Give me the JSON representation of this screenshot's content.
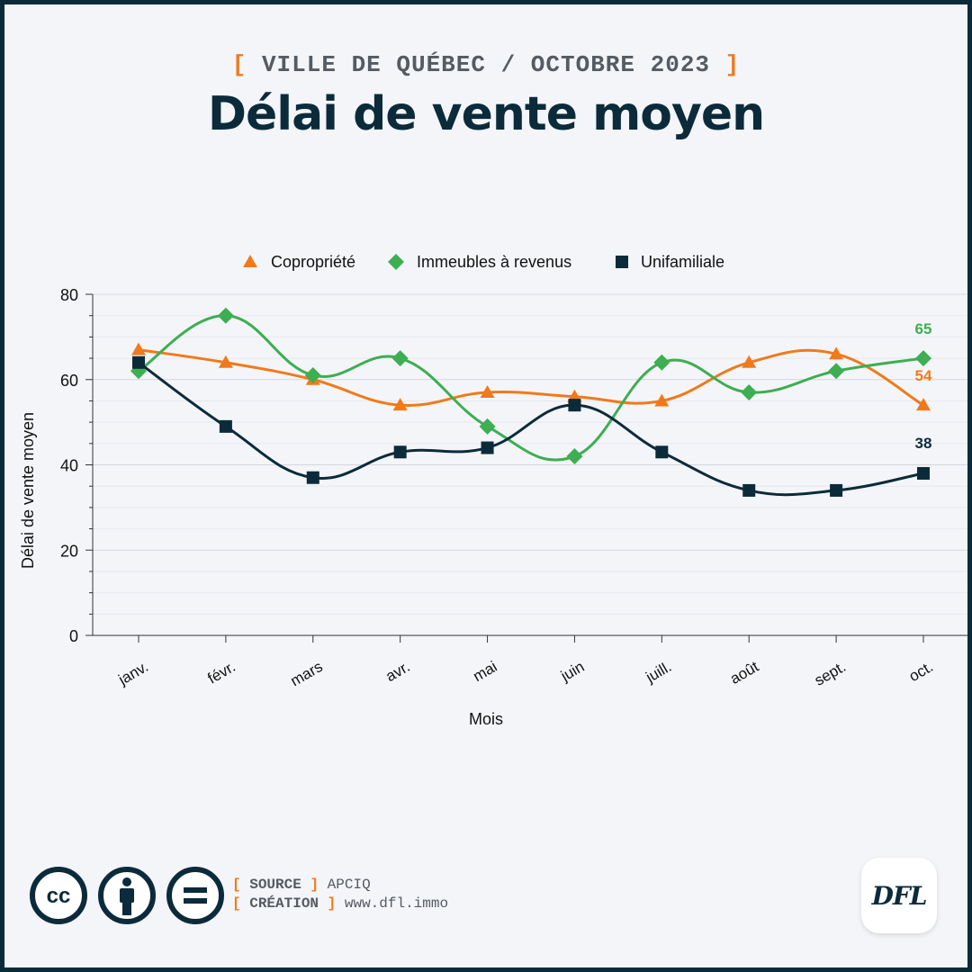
{
  "header": {
    "kicker": "VILLE DE QUÉBEC / OCTOBRE 2023",
    "title": "Délai de vente moyen"
  },
  "footer": {
    "source_label": "SOURCE",
    "source_value": "APCIQ",
    "creation_label": "CRÉATION",
    "creation_value": "www.dfl.immo",
    "logo_text": "DFL",
    "license_icons": [
      "cc-icon",
      "attribution-icon",
      "no-derivatives-icon"
    ],
    "cc_text": "cc",
    "nd_text": "="
  },
  "colors": {
    "navy": "#0b2b3b",
    "orange": "#f07a1a",
    "green": "#3dae52"
  },
  "chart_data": {
    "type": "line",
    "categories": [
      "janv.",
      "févr.",
      "mars",
      "avr.",
      "mai",
      "juin",
      "juill.",
      "août",
      "sept.",
      "oct."
    ],
    "series": [
      {
        "name": "Copropriété",
        "marker": "triangle",
        "color": "#f07a1a",
        "values": [
          67,
          64,
          60,
          54,
          57,
          56,
          55,
          64,
          66,
          54
        ],
        "end_label": "54"
      },
      {
        "name": "Immeubles à revenus",
        "marker": "diamond",
        "color": "#3dae52",
        "values": [
          62,
          75,
          61,
          65,
          49,
          42,
          64,
          57,
          62,
          65
        ],
        "end_label": "65"
      },
      {
        "name": "Unifamiliale",
        "marker": "square",
        "color": "#0b2b3b",
        "values": [
          64,
          49,
          37,
          43,
          44,
          54,
          43,
          34,
          34,
          38
        ],
        "end_label": "38"
      }
    ],
    "xlabel": "Mois",
    "ylabel": "Délai de vente moyen",
    "ylim": [
      0,
      80
    ],
    "yticks": [
      0,
      20,
      40,
      60,
      80
    ],
    "grid": true,
    "legend": "top-center"
  }
}
